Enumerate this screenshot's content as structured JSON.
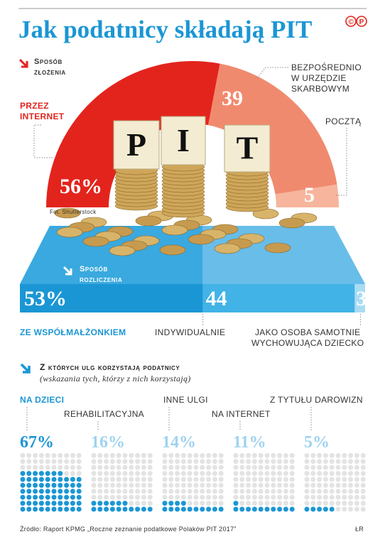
{
  "title": "Jak podatnicy składają PIT",
  "logo": [
    "©",
    "P"
  ],
  "chart_data": [
    {
      "type": "half-donut",
      "title": "Sposób złożenia",
      "categories": [
        "PRZEZ\nINTERNET",
        "BEZPOŚREDNIO\nW URZĘDZIE\nSKARBOWYM",
        "POCZTĄ"
      ],
      "values": [
        56,
        39,
        5
      ],
      "value_labels": [
        "56%",
        "39",
        "5"
      ],
      "colors": [
        "#e3241d",
        "#f08a6f",
        "#f6b59c"
      ],
      "photo_text": [
        "P",
        "I",
        "T"
      ],
      "photo_credit": "Fot. Shutterstock"
    },
    {
      "type": "stacked-bar",
      "title": "Sposób rozliczenia",
      "categories": [
        "ZE WSPÓŁMAŁŻONKIEM",
        "INDYWIDUALNIE",
        "JAKO OSOBA SAMOTNIE\nWYCHOWUJĄCA DZIECKO"
      ],
      "values": [
        53,
        44,
        3
      ],
      "value_labels": [
        "53%",
        "44",
        "3"
      ],
      "colors": [
        "#1b96d4",
        "#42b3e6",
        "#a9dcf3"
      ]
    },
    {
      "type": "waffle",
      "title": "Z których ulg korzystają podatnicy",
      "subtitle": "(wskazania tych, którzy z nich korzystają)",
      "categories": [
        "NA DZIECI",
        "REHABILITACYJNA",
        "INNE ULGI",
        "NA INTERNET",
        "Z TYTUŁU DAROWIZN"
      ],
      "values": [
        67,
        16,
        14,
        11,
        5
      ],
      "value_labels": [
        "67%",
        "16%",
        "14%",
        "11%",
        "5%"
      ],
      "color": "#1b96d4"
    }
  ],
  "source": "Źródło: Raport KPMG „Roczne zeznanie podatkowe Polaków PIT 2017”",
  "author": "ŁR"
}
